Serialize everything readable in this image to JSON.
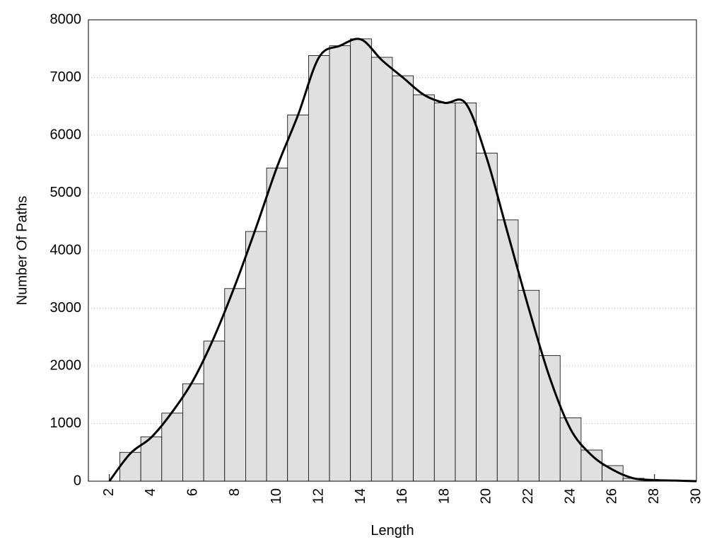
{
  "chart_data": {
    "type": "histogram",
    "xlabel": "Length",
    "ylabel": "Number Of Paths",
    "bins": [
      2.5,
      3.5,
      4.5,
      5.5,
      6.5,
      7.5,
      8.5,
      9.5,
      10.5,
      11.5,
      12.5,
      13.5,
      14.5,
      15.5,
      16.5,
      17.5,
      18.5,
      19.5,
      20.5,
      21.5,
      22.5,
      23.5,
      24.5,
      25.5,
      26.5,
      27.5,
      28.5,
      29.5
    ],
    "values": [
      500,
      770,
      1180,
      1690,
      2430,
      3340,
      4330,
      5430,
      6350,
      7380,
      7550,
      7670,
      7350,
      7030,
      6700,
      6560,
      6560,
      5690,
      4530,
      3310,
      2180,
      1100,
      540,
      270,
      50,
      15,
      8
    ],
    "color": "#e0e0e0",
    "line": {
      "color": "#000000",
      "x": [
        2,
        3,
        4,
        5,
        6,
        7,
        8,
        9,
        10,
        11,
        12,
        13,
        14,
        15,
        16,
        17,
        18,
        19,
        20,
        21,
        22,
        23,
        24,
        25,
        26,
        27,
        28,
        29,
        30
      ],
      "values": [
        0,
        480,
        760,
        1200,
        1750,
        2500,
        3400,
        4400,
        5450,
        6350,
        7350,
        7550,
        7660,
        7300,
        7000,
        6700,
        6560,
        6550,
        5600,
        4300,
        3000,
        1800,
        900,
        450,
        200,
        50,
        20,
        10,
        0
      ]
    },
    "xlim": [
      1,
      30
    ],
    "xticks": [
      2,
      4,
      6,
      8,
      10,
      12,
      14,
      16,
      18,
      20,
      22,
      24,
      26,
      28,
      30
    ],
    "ylim": [
      0,
      8000
    ],
    "yticks": [
      0,
      1000,
      2000,
      3000,
      4000,
      5000,
      6000,
      7000,
      8000
    ],
    "grid": true
  }
}
